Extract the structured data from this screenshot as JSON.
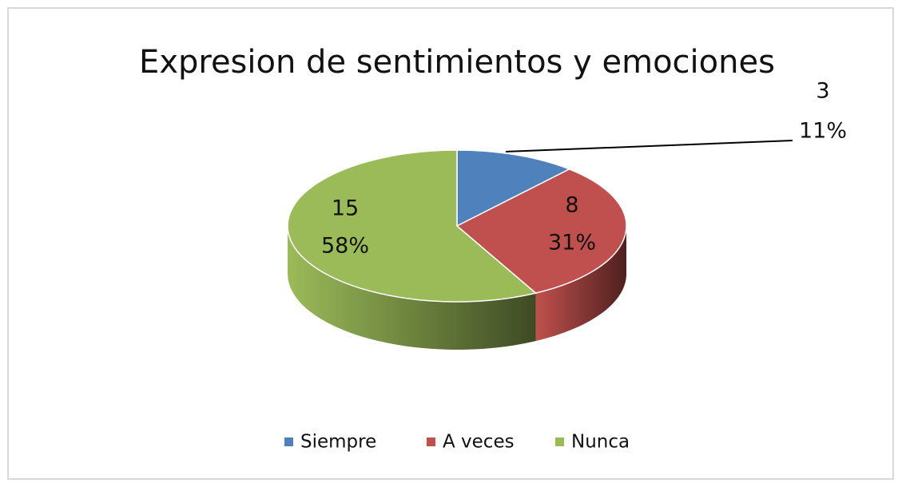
{
  "chart_data": {
    "type": "pie3d",
    "title": "Expresion de sentimientos y emociones",
    "categories": [
      "Siempre",
      "A veces",
      "Nunca"
    ],
    "values": [
      3,
      8,
      15
    ],
    "percentages": [
      11,
      31,
      58
    ],
    "percentage_labels": [
      "11%",
      "31%",
      "58%"
    ],
    "colors": [
      "#4f81bd",
      "#c0504d",
      "#9bbb59"
    ],
    "legend": "bottom"
  }
}
